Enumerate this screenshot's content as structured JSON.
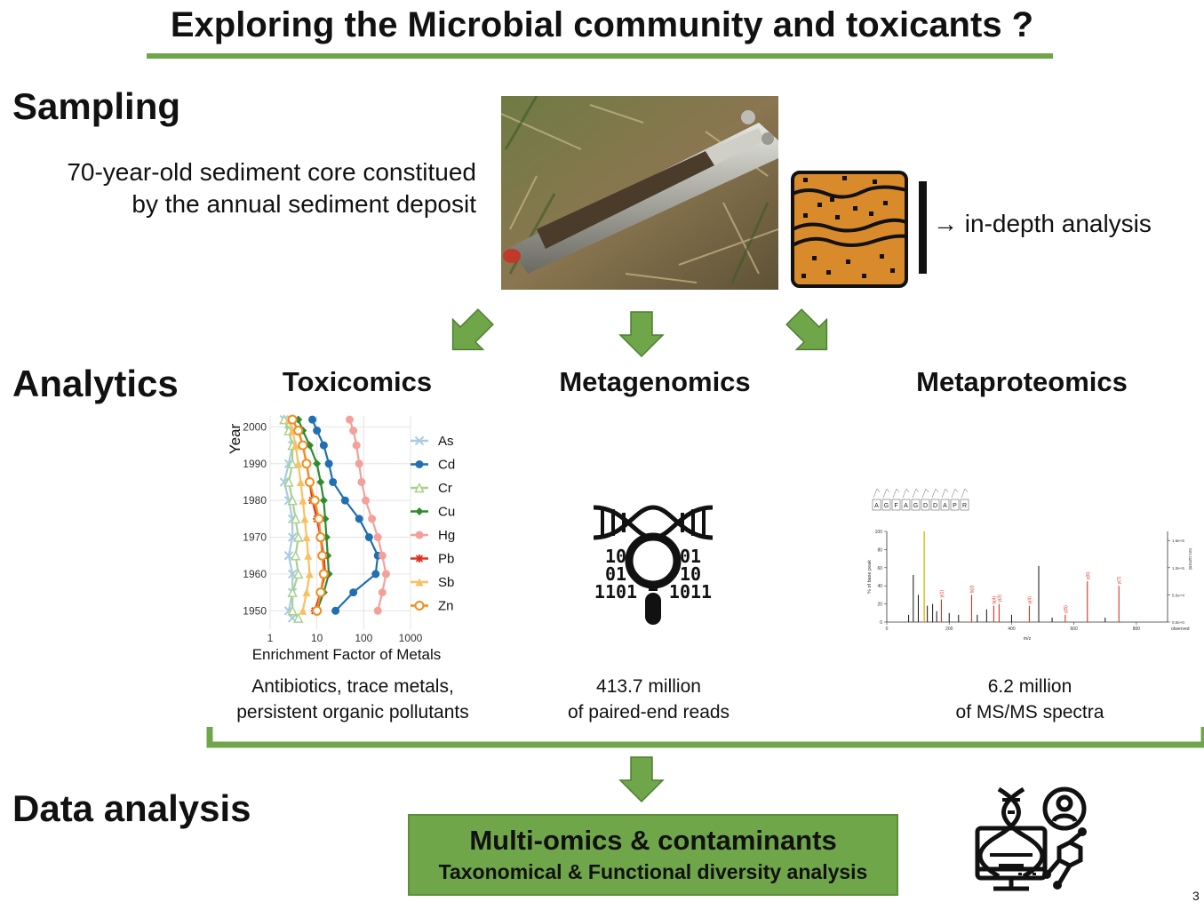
{
  "title": "Exploring the Microbial community and toxicants ?",
  "sections": {
    "sampling": "Sampling",
    "analytics": "Analytics",
    "data_analysis": "Data analysis"
  },
  "sampling": {
    "line1": "70-year-old sediment core constitued",
    "line2": "by the annual sediment deposit",
    "depth_label": "→ in-depth analysis"
  },
  "columns": {
    "toxicomics": {
      "title": "Toxicomics",
      "caption_line1": "Antibiotics, trace metals,",
      "caption_line2": "persistent organic pollutants"
    },
    "metagenomics": {
      "title": "Metagenomics",
      "caption_line1": "413.7 million",
      "caption_line2": "of paired-end reads"
    },
    "metaproteomics": {
      "title": "Metaproteomics",
      "caption_line1": "6.2 million",
      "caption_line2": "of MS/MS spectra"
    }
  },
  "result": {
    "main": "Multi-omics & contaminants",
    "sub": "Taxonomical & Functional diversity analysis"
  },
  "page_number": "3",
  "colors": {
    "accent_green": "#70a64a",
    "sediment_orange": "#d98a2b"
  },
  "icons": {
    "sediment": "sediment-layers-icon",
    "dna_search": "dna-magnifier-icon",
    "bioinformatics": "computer-dna-molecule-icon"
  },
  "binary_digits": {
    "left": [
      "10",
      "01",
      "1101"
    ],
    "right": [
      "01",
      "10",
      "1011"
    ]
  },
  "chart_data": [
    {
      "type": "line",
      "xlabel": "Enrichment Factor of Metals",
      "ylabel": "Year",
      "x_scale": "log",
      "xlim": [
        1,
        1000
      ],
      "ylim": [
        1945,
        2003
      ],
      "x_ticks": [
        "1",
        "10",
        "100",
        "1000"
      ],
      "y_ticks": [
        "1950",
        "1960",
        "1970",
        "1980",
        "1990",
        "2000"
      ],
      "legend_position": "right",
      "series": [
        {
          "name": "As",
          "color": "#a8cce0",
          "marker": "x",
          "years": [
            2002,
            1999,
            1995,
            1990,
            1985,
            1980,
            1975,
            1970,
            1965,
            1960,
            1955,
            1950,
            1948
          ],
          "values": [
            2,
            2.5,
            3,
            2.5,
            2,
            2.5,
            3,
            3,
            2.5,
            3,
            3,
            2.5,
            3
          ]
        },
        {
          "name": "Cd",
          "color": "#1f6fb2",
          "marker": "circle",
          "years": [
            2002,
            1999,
            1995,
            1990,
            1985,
            1980,
            1975,
            1970,
            1965,
            1960,
            1955,
            1950
          ],
          "values": [
            8,
            10,
            14,
            18,
            22,
            40,
            80,
            130,
            200,
            180,
            60,
            25
          ]
        },
        {
          "name": "Cr",
          "color": "#a9d18e",
          "marker": "triangle-open",
          "years": [
            2002,
            1999,
            1995,
            1990,
            1985,
            1980,
            1975,
            1970,
            1965,
            1960,
            1955,
            1950,
            1948
          ],
          "values": [
            2,
            2.5,
            3,
            3,
            2.5,
            3,
            3.5,
            4,
            3.5,
            4,
            3,
            3,
            4
          ]
        },
        {
          "name": "Cu",
          "color": "#2e8b2e",
          "marker": "diamond",
          "years": [
            2002,
            1999,
            1995,
            1990,
            1985,
            1980,
            1975,
            1970,
            1965,
            1960,
            1955,
            1950
          ],
          "values": [
            4,
            5,
            7,
            10,
            12,
            14,
            15,
            16,
            17,
            18,
            14,
            10
          ]
        },
        {
          "name": "Hg",
          "color": "#f4a09a",
          "marker": "circle",
          "years": [
            2002,
            1999,
            1995,
            1990,
            1985,
            1980,
            1975,
            1970,
            1965,
            1960,
            1955,
            1950
          ],
          "values": [
            50,
            60,
            70,
            80,
            90,
            110,
            150,
            200,
            250,
            300,
            250,
            200
          ]
        },
        {
          "name": "Pb",
          "color": "#e03020",
          "marker": "asterisk",
          "years": [
            2002,
            1999,
            1995,
            1990,
            1985,
            1980,
            1975,
            1970,
            1965,
            1960,
            1955,
            1950
          ],
          "values": [
            3,
            4,
            5,
            6,
            7,
            8,
            10,
            12,
            14,
            15,
            12,
            9
          ]
        },
        {
          "name": "Sb",
          "color": "#f9c063",
          "marker": "triangle",
          "years": [
            2002,
            1999,
            1995,
            1990,
            1985,
            1980,
            1975,
            1970,
            1965,
            1960,
            1955,
            1950
          ],
          "values": [
            2.5,
            3,
            3.5,
            4,
            4.5,
            5,
            5.5,
            6,
            6.5,
            7,
            6,
            5
          ]
        },
        {
          "name": "Zn",
          "color": "#f28c1e",
          "marker": "circle-open",
          "years": [
            2002,
            1999,
            1995,
            1990,
            1985,
            1980,
            1975,
            1970,
            1965,
            1960,
            1955,
            1950
          ],
          "values": [
            3,
            4,
            5,
            6,
            7,
            9,
            11,
            12,
            13,
            14,
            12,
            10
          ]
        }
      ]
    },
    {
      "type": "bar",
      "xlabel": "m/z",
      "ylabel": "% of base peak",
      "y2label": "ion current",
      "sequence": [
        "A",
        "G",
        "F",
        "A",
        "G",
        "D",
        "D",
        "A",
        "P",
        "R"
      ],
      "x_ticks": [
        "0",
        "200",
        "400",
        "600",
        "800"
      ],
      "y_ticks": [
        "0",
        "20",
        "40",
        "60",
        "80",
        "100"
      ],
      "y2_ticks": [
        "0.0e+0",
        "5.0e+4",
        "1.0e+5",
        "1.5e+5"
      ],
      "xlim": [
        0,
        900
      ],
      "ylim": [
        0,
        100
      ],
      "observed_label": "observed",
      "peaks": [
        {
          "mz": 70,
          "h": 8
        },
        {
          "mz": 85,
          "h": 52
        },
        {
          "mz": 101,
          "h": 30
        },
        {
          "mz": 120,
          "h": 100,
          "kind": "precursor"
        },
        {
          "mz": 130,
          "h": 18
        },
        {
          "mz": 147,
          "h": 20
        },
        {
          "mz": 160,
          "h": 12
        },
        {
          "mz": 175,
          "h": 25,
          "kind": "ion",
          "label": "y(1)"
        },
        {
          "mz": 200,
          "h": 10
        },
        {
          "mz": 230,
          "h": 8
        },
        {
          "mz": 272,
          "h": 30,
          "kind": "ion",
          "label": "b(3)"
        },
        {
          "mz": 290,
          "h": 8
        },
        {
          "mz": 320,
          "h": 14
        },
        {
          "mz": 343,
          "h": 18,
          "kind": "ion",
          "label": "b(4)"
        },
        {
          "mz": 360,
          "h": 20,
          "kind": "ion",
          "label": "y(3)"
        },
        {
          "mz": 400,
          "h": 8
        },
        {
          "mz": 457,
          "h": 18,
          "kind": "ion",
          "label": "y(4)"
        },
        {
          "mz": 487,
          "h": 62
        },
        {
          "mz": 530,
          "h": 5
        },
        {
          "mz": 572,
          "h": 8,
          "kind": "ion",
          "label": "y(5)"
        },
        {
          "mz": 643,
          "h": 45,
          "kind": "ion",
          "label": "y(6)"
        },
        {
          "mz": 700,
          "h": 5
        },
        {
          "mz": 744,
          "h": 40,
          "kind": "ion",
          "label": "y(7)"
        }
      ]
    }
  ]
}
